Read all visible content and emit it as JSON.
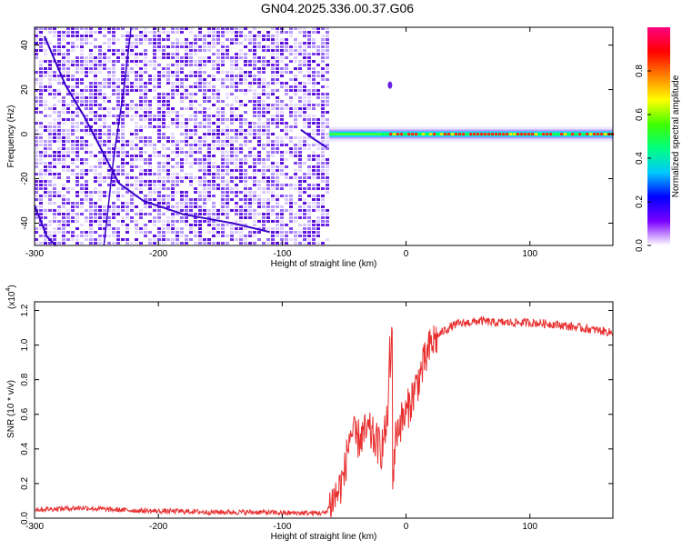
{
  "title": "GN04.2025.336.00.37.G06",
  "spectrogram": {
    "type": "heatmap",
    "xlabel": "Height of straight line (km)",
    "ylabel": "Frequency (Hz)",
    "xlim": [
      -300,
      167
    ],
    "ylim": [
      -50,
      48
    ],
    "xticks": [
      -300,
      -200,
      -100,
      0,
      100
    ],
    "yticks": [
      -40,
      -20,
      0,
      20,
      40
    ],
    "noise_region_x": [
      -300,
      -62
    ],
    "carrier_frequency": 0,
    "carrier_start_x": -62,
    "blip": {
      "x": -13,
      "y": 22
    },
    "colorbar": {
      "label": "Normalized spectral amplitude",
      "ticks": [
        0.0,
        0.2,
        0.4,
        0.6,
        0.8
      ],
      "tick_labels": [
        "0.0",
        "0.2",
        "0.4",
        "0.6",
        "0.8"
      ],
      "range": [
        0,
        1
      ],
      "colors": [
        "#ffffff",
        "#7a00ff",
        "#0000ff",
        "#00c8ff",
        "#00ff80",
        "#40ff00",
        "#ffff00",
        "#ff8000",
        "#ff0000",
        "#ff0080"
      ]
    }
  },
  "chart_data": {
    "type": "line",
    "xlabel": "Height of straight line (km)",
    "ylabel": "SNR (10 * v/v)",
    "scale_label": "(x10",
    "scale_exp": "4",
    "scale_close": ")",
    "xlim": [
      -300,
      167
    ],
    "ylim": [
      0,
      1.25
    ],
    "xticks": [
      -300,
      -200,
      -100,
      0,
      100
    ],
    "yticks": [
      0.0,
      0.2,
      0.4,
      0.6,
      0.8,
      1.0,
      1.2
    ],
    "ytick_labels": [
      "0.0",
      "0.2",
      "0.4",
      "0.6",
      "0.8",
      "1.0",
      "1.2"
    ],
    "color": "#e83030",
    "series": [
      {
        "x": [
          -300,
          -280,
          -260,
          -240,
          -220,
          -200,
          -180,
          -160,
          -140,
          -120,
          -100,
          -80,
          -65,
          -60,
          -55,
          -50,
          -45,
          -40,
          -35,
          -30,
          -25,
          -20,
          -15,
          -13,
          -11,
          -8,
          -5,
          0,
          5,
          10,
          15,
          20,
          25,
          30,
          40,
          50,
          60,
          70,
          80,
          100,
          120,
          140,
          160,
          167
        ],
        "y": [
          0.05,
          0.055,
          0.06,
          0.05,
          0.045,
          0.04,
          0.04,
          0.035,
          0.035,
          0.035,
          0.03,
          0.03,
          0.03,
          0.1,
          0.15,
          0.25,
          0.5,
          0.45,
          0.48,
          0.5,
          0.45,
          0.4,
          0.55,
          1.2,
          0.2,
          0.5,
          0.55,
          0.6,
          0.7,
          0.8,
          0.9,
          1.0,
          1.05,
          1.08,
          1.12,
          1.13,
          1.14,
          1.13,
          1.13,
          1.13,
          1.12,
          1.1,
          1.08,
          1.07
        ]
      }
    ]
  }
}
